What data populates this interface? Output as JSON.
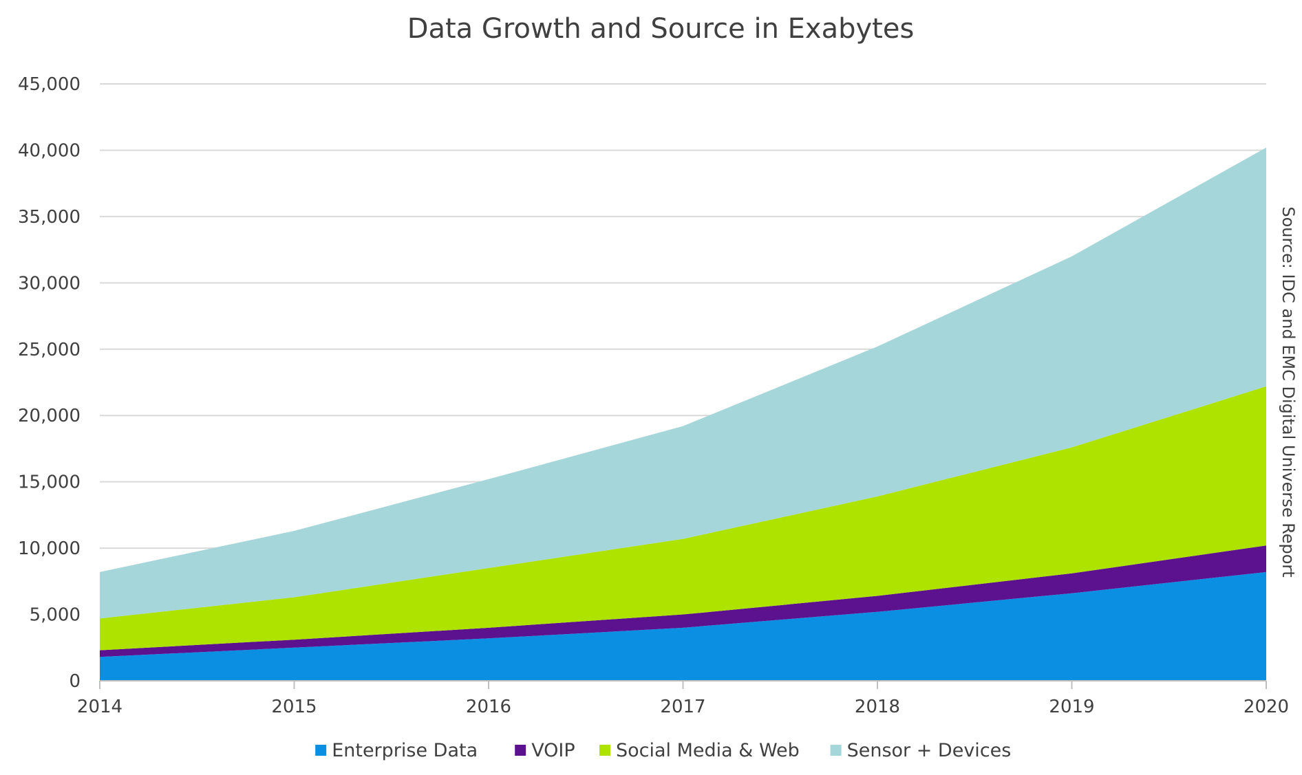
{
  "chart_data": {
    "type": "area",
    "stacked": true,
    "title": "Data Growth and Source in Exabytes",
    "xlabel": "",
    "ylabel": "",
    "x": [
      "2014",
      "2015",
      "2016",
      "2017",
      "2018",
      "2019",
      "2020"
    ],
    "ylim": [
      0,
      45000
    ],
    "yticks": [
      0,
      5000,
      10000,
      15000,
      20000,
      25000,
      30000,
      35000,
      40000,
      45000
    ],
    "ytick_labels": [
      "0",
      "5,000",
      "10,000",
      "15,000",
      "20,000",
      "25,000",
      "30,000",
      "35,000",
      "40,000",
      "45,000"
    ],
    "grid": true,
    "legend_position": "bottom",
    "series": [
      {
        "name": "Enterprise Data",
        "color": "#0a8fe2",
        "values": [
          1800,
          2500,
          3200,
          4000,
          5200,
          6600,
          8200
        ]
      },
      {
        "name": "VOIP",
        "color": "#5c128f",
        "values": [
          500,
          600,
          800,
          1000,
          1200,
          1500,
          2000
        ]
      },
      {
        "name": "Social Media & Web",
        "color": "#aee300",
        "values": [
          2400,
          3200,
          4500,
          5700,
          7500,
          9500,
          12000
        ]
      },
      {
        "name": "Sensor + Devices",
        "color": "#a5d6da",
        "values": [
          3500,
          5000,
          6700,
          8500,
          11300,
          14400,
          18000
        ]
      }
    ],
    "annotations": [
      "Source: IDC and EMC Digital Universe Report"
    ]
  }
}
